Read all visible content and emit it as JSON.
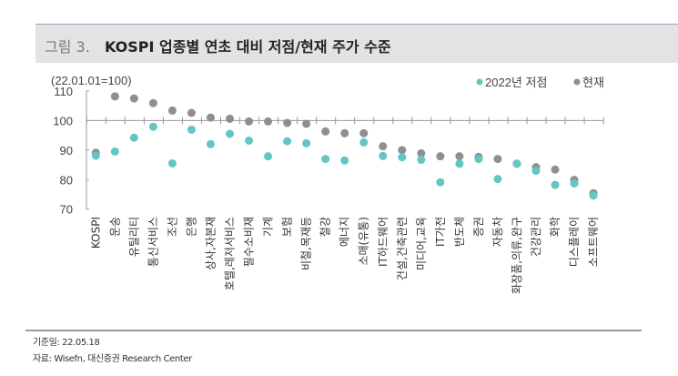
{
  "title": {
    "figure_no": "그림 3.",
    "text": "KOSPI 업종별 연초 대비 저점/현재 주가 수준"
  },
  "footer": {
    "base_date": "기준일: 22.05.18",
    "source": "자료: Wisefn, 대신증권 Research Center"
  },
  "chart_data": {
    "type": "scatter",
    "unit_label": "(22.01.01=100)",
    "ylim": [
      70,
      110
    ],
    "yticks": [
      "70",
      "80",
      "90",
      "100",
      "110"
    ],
    "grid": false,
    "legend_position": "top-right",
    "categories": [
      "KOSPI",
      "운송",
      "유틸리티",
      "통신서비스",
      "조선",
      "은행",
      "상사,자본재",
      "호텔,레저서비스",
      "필수소비재",
      "기계",
      "보험",
      "비철,목재등",
      "철강",
      "에너지",
      "소매(유통)",
      "IT하드웨어",
      "건설,건축관련",
      "미디어,교육",
      "IT가전",
      "반도체",
      "증권",
      "자동차",
      "화장품,의류,완구",
      "건강관리",
      "화학",
      "디스플레이",
      "소프트웨어"
    ],
    "series": [
      {
        "name": "2022년 저점",
        "color": "#62c6c4",
        "values": [
          88.1,
          89.5,
          94.2,
          97.9,
          85.5,
          96.9,
          92.0,
          95.5,
          93.2,
          87.9,
          93.0,
          92.3,
          87.0,
          86.5,
          92.6,
          88.0,
          87.6,
          86.7,
          79.1,
          85.4,
          87.0,
          80.2,
          85.4,
          83.0,
          78.2,
          78.7,
          74.6
        ]
      },
      {
        "name": "현재",
        "color": "#8f8f8f",
        "values": [
          89.1,
          108.2,
          107.5,
          105.9,
          103.4,
          102.6,
          101.0,
          100.6,
          99.7,
          99.7,
          99.2,
          98.9,
          96.3,
          95.7,
          95.7,
          91.3,
          90.0,
          88.9,
          87.9,
          87.9,
          87.7,
          87.0,
          85.4,
          84.2,
          83.4,
          79.9,
          75.4
        ]
      }
    ]
  }
}
